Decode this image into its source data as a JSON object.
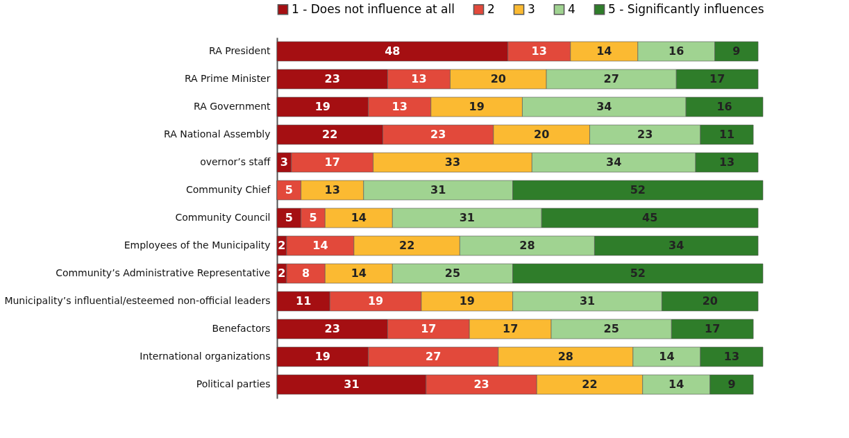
{
  "chart_data": {
    "type": "bar",
    "orientation": "horizontal",
    "stacked": true,
    "legend": "top",
    "tick_labels": "y",
    "xlim": [
      0,
      101
    ],
    "categories": [
      "RA President",
      "RA Prime Minister",
      "RA Government",
      "RA National Assembly",
      "overnor’s staff",
      "Community Chief",
      "Community Council",
      "Employees of the Municipality",
      "Community’s Administrative Representative",
      "Municipality’s influential/esteemed non-official leaders",
      "Benefactors",
      "International organizations",
      "Political parties"
    ],
    "series": [
      {
        "name": "1 - Does not influence at all",
        "color": "#a50f12",
        "values": [
          48,
          23,
          19,
          22,
          3,
          0,
          5,
          2,
          2,
          11,
          23,
          19,
          31
        ],
        "value_labels": [
          "48",
          "23",
          "19",
          "22",
          "3",
          null,
          "5",
          "2",
          "2",
          "11",
          "23",
          "19",
          "31"
        ]
      },
      {
        "name": "2",
        "color": "#e2493b",
        "values": [
          13,
          13,
          13,
          23,
          17,
          5,
          5,
          14,
          8,
          19,
          17,
          27,
          23
        ],
        "value_labels": [
          "13",
          "13",
          "13",
          "23",
          "17",
          "5",
          "5",
          "14",
          "8",
          "19",
          "17",
          "27",
          "23"
        ]
      },
      {
        "name": "3",
        "color": "#fbba32",
        "values": [
          14,
          20,
          19,
          20,
          33,
          13,
          14,
          22,
          14,
          19,
          17,
          28,
          22
        ],
        "value_labels": [
          "14",
          "20",
          "19",
          "20",
          "33",
          "13",
          "14",
          "22",
          "14",
          "19",
          "17",
          "28",
          "22"
        ]
      },
      {
        "name": "4",
        "color": "#a0d391",
        "values": [
          16,
          27,
          34,
          23,
          34,
          31,
          31,
          28,
          25,
          31,
          25,
          14,
          14
        ],
        "value_labels": [
          "16",
          "27",
          "34",
          "23",
          "34",
          "31",
          "31",
          "28",
          "25",
          "31",
          "25",
          "14",
          "14"
        ]
      },
      {
        "name": "5 - Significantly influences",
        "color": "#2f7d2a",
        "values": [
          9,
          17,
          16,
          11,
          13,
          52,
          45,
          34,
          52,
          20,
          17,
          13,
          9
        ],
        "value_labels": [
          "9",
          "17",
          "16",
          "11",
          "13",
          "52",
          "45",
          "34",
          "52",
          "20",
          "17",
          "13",
          "9"
        ]
      }
    ]
  }
}
